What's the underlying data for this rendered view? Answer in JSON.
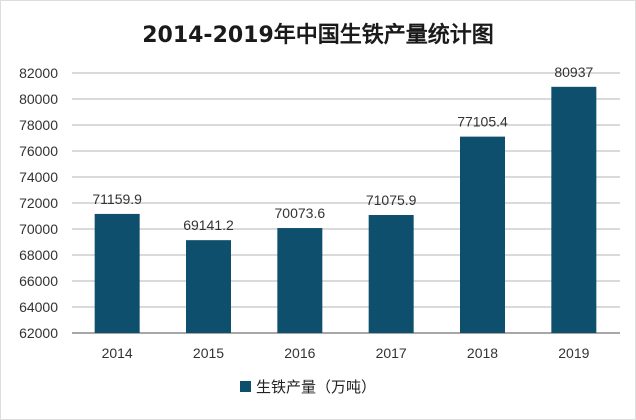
{
  "chart_data": {
    "type": "bar",
    "title": "2014-2019年中国生铁产量统计图",
    "categories": [
      "2014",
      "2015",
      "2016",
      "2017",
      "2018",
      "2019"
    ],
    "series": [
      {
        "name": "生铁产量（万吨）",
        "values": [
          71159.9,
          69141.2,
          70073.6,
          71075.9,
          77105.4,
          80937
        ],
        "labels": [
          "71159.9",
          "69141.2",
          "70073.6",
          "71075.9",
          "77105.4",
          "80937"
        ]
      }
    ],
    "ylim": [
      62000,
      82000
    ],
    "yticks": [
      "62000",
      "64000",
      "66000",
      "68000",
      "70000",
      "72000",
      "74000",
      "76000",
      "78000",
      "80000",
      "82000"
    ],
    "xlabel": "",
    "ylabel": "",
    "grid": true,
    "legend_position": "bottom",
    "bar_color": "#0d4f6c"
  }
}
